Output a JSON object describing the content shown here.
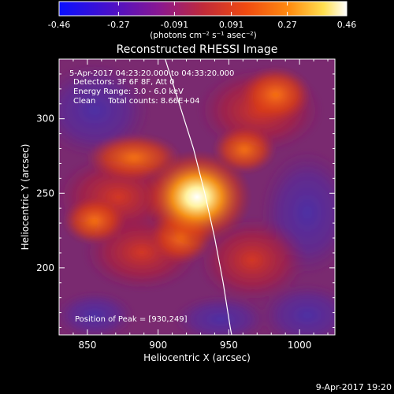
{
  "colorbar": {
    "ticks": [
      "-0.46",
      "-0.27",
      "-0.091",
      "0.091",
      "0.27",
      "0.46"
    ],
    "tick_values": [
      -0.46,
      -0.27,
      -0.091,
      0.091,
      0.27,
      0.46
    ],
    "range": [
      -0.46,
      0.46
    ],
    "units": "(photons cm⁻² s⁻¹ asec⁻²)",
    "colors": [
      "#0a10ff",
      "#4a10c8",
      "#8a1890",
      "#c02a3a",
      "#f04a10",
      "#ff8c10",
      "#ffe050",
      "#ffffff"
    ]
  },
  "chart_data": {
    "type": "heatmap",
    "title": "Reconstructed RHESSI Image",
    "xlabel": "Heliocentric X (arcsec)",
    "ylabel": "Heliocentric Y (arcsec)",
    "xlim": [
      830,
      1025
    ],
    "ylim": [
      155,
      340
    ],
    "x_ticks": [
      850,
      900,
      950,
      1000
    ],
    "y_ticks": [
      200,
      250,
      300
    ],
    "annotations": [
      "5-Apr-2017 04:23:20.000 to 04:33:20.000",
      "Detectors: 3F 6F 8F, Att 0",
      "Energy Range: 3.0 - 6.0 keV",
      "Clean     Total counts: 8.66E+04",
      "Position of Peak = [930,249]"
    ],
    "peak": [
      930,
      249
    ],
    "limb_points": [
      [
        905,
        340
      ],
      [
        915,
        310
      ],
      [
        925,
        280
      ],
      [
        933,
        250
      ],
      [
        940,
        220
      ],
      [
        946,
        190
      ],
      [
        951,
        160
      ],
      [
        952,
        155
      ]
    ]
  },
  "footer": {
    "timestamp": "9-Apr-2017 19:20"
  }
}
